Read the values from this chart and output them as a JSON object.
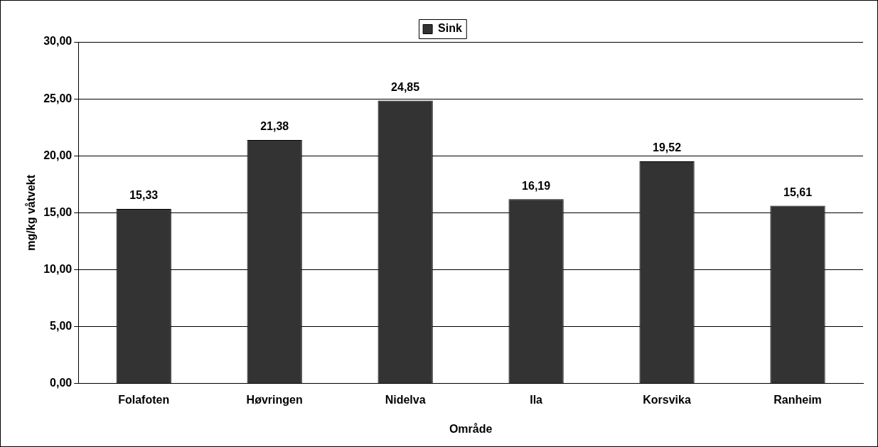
{
  "chart_data": {
    "type": "bar",
    "xlabel": "Område",
    "ylabel": "mg/kg våtvekt",
    "categories": [
      "Folafoten",
      "Høvringen",
      "Nidelva",
      "Ila",
      "Korsvika",
      "Ranheim"
    ],
    "series": [
      {
        "name": "Sink",
        "color": "#333333",
        "values": [
          15.33,
          21.38,
          24.85,
          16.19,
          19.52,
          15.61
        ],
        "value_labels": [
          "15,33",
          "21,38",
          "24,85",
          "16,19",
          "19,52",
          "15,61"
        ]
      }
    ],
    "ylim": [
      0,
      30
    ],
    "yticks": [
      {
        "value": 0,
        "label": "0,00"
      },
      {
        "value": 5,
        "label": "5,00"
      },
      {
        "value": 10,
        "label": "10,00"
      },
      {
        "value": 15,
        "label": "15,00"
      },
      {
        "value": 20,
        "label": "20,00"
      },
      {
        "value": 25,
        "label": "25,00"
      },
      {
        "value": 30,
        "label": "30,00"
      }
    ],
    "grid": "y",
    "legend": "top"
  }
}
